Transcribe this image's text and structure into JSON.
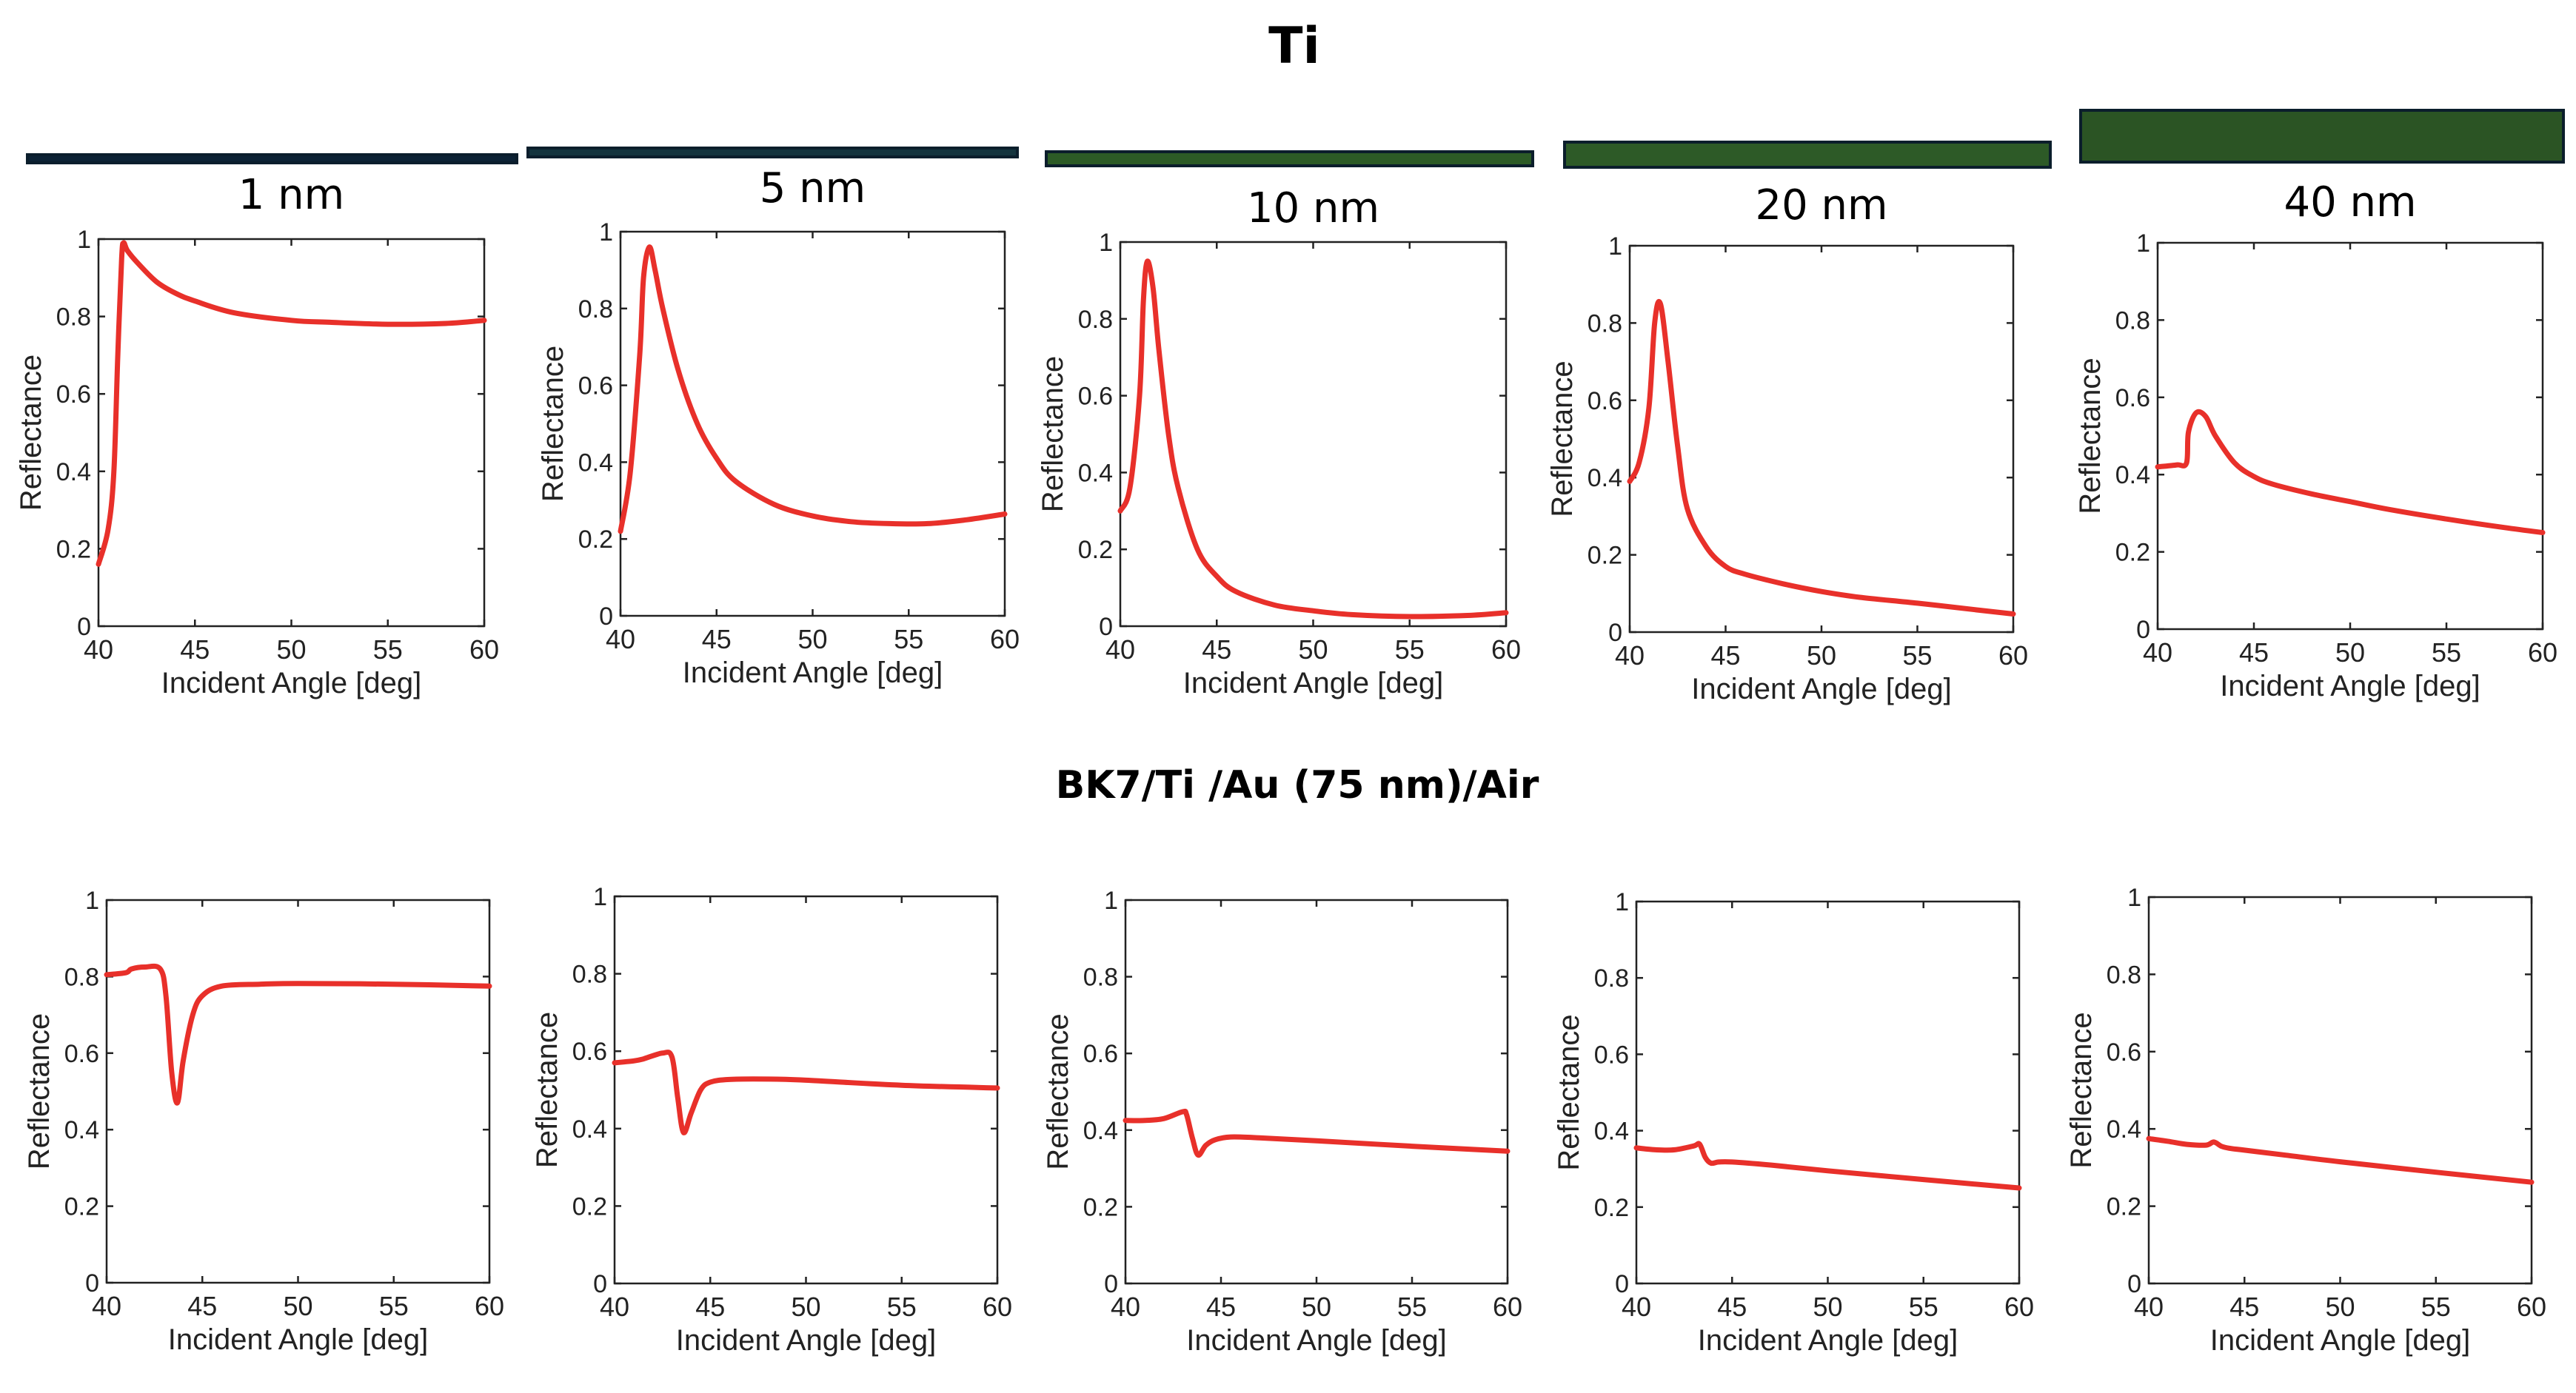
{
  "figure": {
    "title": "Ti",
    "subtitle": "BK7/Ti /Au (75 nm)/Air",
    "thickness_labels": [
      "1 nm",
      "5 nm",
      "10 nm",
      "20 nm",
      "40 nm"
    ],
    "thickness_bar_colors": [
      "#0c2235",
      "#14343e",
      "#2c5b26",
      "#2d5a27",
      "#2b5424"
    ],
    "line_color": "#e8302a"
  },
  "chart_data": [
    {
      "type": "line",
      "row": "top",
      "panel": "1 nm",
      "xlabel": "Incident Angle [deg]",
      "ylabel": "Reflectance",
      "xlim": [
        40,
        60
      ],
      "ylim": [
        0,
        1
      ],
      "xticks": [
        40,
        45,
        50,
        55,
        60
      ],
      "yticks": [
        0,
        0.2,
        0.4,
        0.6,
        0.8,
        1
      ],
      "x": [
        40,
        40.5,
        40.8,
        41.0,
        41.2,
        41.3,
        41.5,
        42,
        43,
        44,
        45,
        47,
        50,
        52,
        55,
        58,
        60
      ],
      "y": [
        0.16,
        0.25,
        0.4,
        0.7,
        0.95,
        0.99,
        0.97,
        0.94,
        0.89,
        0.86,
        0.84,
        0.81,
        0.79,
        0.785,
        0.78,
        0.782,
        0.79
      ]
    },
    {
      "type": "line",
      "row": "top",
      "panel": "5 nm",
      "xlabel": "Incident Angle [deg]",
      "ylabel": "Reflectance",
      "xlim": [
        40,
        60
      ],
      "ylim": [
        0,
        1
      ],
      "xticks": [
        40,
        45,
        50,
        55,
        60
      ],
      "yticks": [
        0,
        0.2,
        0.4,
        0.6,
        0.8,
        1
      ],
      "x": [
        40,
        40.5,
        41.0,
        41.2,
        41.5,
        41.8,
        42.2,
        43,
        44,
        45,
        46,
        48,
        50,
        52,
        54,
        56,
        58,
        60
      ],
      "y": [
        0.22,
        0.37,
        0.68,
        0.88,
        0.96,
        0.9,
        0.8,
        0.64,
        0.5,
        0.41,
        0.35,
        0.29,
        0.26,
        0.245,
        0.24,
        0.24,
        0.25,
        0.265
      ]
    },
    {
      "type": "line",
      "row": "top",
      "panel": "10 nm",
      "xlabel": "Incident Angle [deg]",
      "ylabel": "Reflectance",
      "xlim": [
        40,
        60
      ],
      "ylim": [
        0,
        1
      ],
      "xticks": [
        40,
        45,
        50,
        55,
        60
      ],
      "yticks": [
        0,
        0.2,
        0.4,
        0.6,
        0.8,
        1
      ],
      "x": [
        40,
        40.5,
        41.0,
        41.2,
        41.4,
        41.7,
        42.0,
        42.5,
        43,
        44,
        45,
        46,
        48,
        50,
        52,
        55,
        58,
        60
      ],
      "y": [
        0.3,
        0.36,
        0.6,
        0.85,
        0.95,
        0.88,
        0.72,
        0.5,
        0.36,
        0.2,
        0.13,
        0.09,
        0.055,
        0.04,
        0.03,
        0.025,
        0.028,
        0.035
      ]
    },
    {
      "type": "line",
      "row": "top",
      "panel": "20 nm",
      "xlabel": "Incident Angle [deg]",
      "ylabel": "Reflectance",
      "xlim": [
        40,
        60
      ],
      "ylim": [
        0,
        1
      ],
      "xticks": [
        40,
        45,
        50,
        55,
        60
      ],
      "yticks": [
        0,
        0.2,
        0.4,
        0.6,
        0.8,
        1
      ],
      "x": [
        40,
        40.5,
        41.0,
        41.3,
        41.6,
        42.0,
        42.5,
        43,
        44,
        45,
        46,
        48,
        50,
        52,
        55,
        58,
        60
      ],
      "y": [
        0.39,
        0.44,
        0.58,
        0.8,
        0.85,
        0.7,
        0.48,
        0.32,
        0.22,
        0.17,
        0.15,
        0.125,
        0.105,
        0.09,
        0.075,
        0.058,
        0.047
      ]
    },
    {
      "type": "line",
      "row": "top",
      "panel": "40 nm",
      "xlabel": "Incident Angle [deg]",
      "ylabel": "Reflectance",
      "xlim": [
        40,
        60
      ],
      "ylim": [
        0,
        1
      ],
      "xticks": [
        40,
        45,
        50,
        55,
        60
      ],
      "yticks": [
        0,
        0.2,
        0.4,
        0.6,
        0.8,
        1
      ],
      "x": [
        40,
        41,
        41.5,
        41.6,
        42.0,
        42.5,
        43,
        44,
        45,
        46,
        48,
        50,
        52,
        55,
        58,
        60
      ],
      "y": [
        0.42,
        0.425,
        0.43,
        0.51,
        0.56,
        0.55,
        0.5,
        0.43,
        0.395,
        0.375,
        0.35,
        0.33,
        0.31,
        0.285,
        0.263,
        0.25
      ]
    },
    {
      "type": "line",
      "row": "bottom",
      "panel": "1 nm",
      "xlabel": "Incident Angle [deg]",
      "ylabel": "Reflectance",
      "xlim": [
        40,
        60
      ],
      "ylim": [
        0,
        1
      ],
      "xticks": [
        40,
        45,
        50,
        55,
        60
      ],
      "yticks": [
        0,
        0.2,
        0.4,
        0.6,
        0.8,
        1
      ],
      "x": [
        40,
        41,
        41.3,
        42,
        42.8,
        43.1,
        43.4,
        43.7,
        44.0,
        44.5,
        45,
        46,
        48,
        50,
        55,
        60
      ],
      "y": [
        0.805,
        0.81,
        0.82,
        0.825,
        0.82,
        0.75,
        0.55,
        0.47,
        0.58,
        0.7,
        0.75,
        0.775,
        0.78,
        0.782,
        0.78,
        0.775
      ]
    },
    {
      "type": "line",
      "row": "bottom",
      "panel": "5 nm",
      "xlabel": "Incident Angle [deg]",
      "ylabel": "Reflectance",
      "xlim": [
        40,
        60
      ],
      "ylim": [
        0,
        1
      ],
      "xticks": [
        40,
        45,
        50,
        55,
        60
      ],
      "yticks": [
        0,
        0.2,
        0.4,
        0.6,
        0.8,
        1
      ],
      "x": [
        40,
        41,
        41.5,
        42.5,
        43.0,
        43.3,
        43.6,
        44.0,
        44.5,
        45,
        46,
        48,
        50,
        55,
        60
      ],
      "y": [
        0.57,
        0.575,
        0.58,
        0.595,
        0.585,
        0.48,
        0.39,
        0.44,
        0.5,
        0.52,
        0.527,
        0.528,
        0.525,
        0.512,
        0.505
      ]
    },
    {
      "type": "line",
      "row": "bottom",
      "panel": "10 nm",
      "xlabel": "Incident Angle [deg]",
      "ylabel": "Reflectance",
      "xlim": [
        40,
        60
      ],
      "ylim": [
        0,
        1
      ],
      "xticks": [
        40,
        45,
        50,
        55,
        60
      ],
      "yticks": [
        0,
        0.2,
        0.4,
        0.6,
        0.8,
        1
      ],
      "x": [
        40,
        41,
        42,
        43,
        43.2,
        43.5,
        43.8,
        44.2,
        44.7,
        45.5,
        47,
        50,
        55,
        60
      ],
      "y": [
        0.425,
        0.425,
        0.43,
        0.448,
        0.44,
        0.38,
        0.335,
        0.36,
        0.375,
        0.382,
        0.38,
        0.372,
        0.358,
        0.345
      ]
    },
    {
      "type": "line",
      "row": "bottom",
      "panel": "20 nm",
      "xlabel": "Incident Angle [deg]",
      "ylabel": "Reflectance",
      "xlim": [
        40,
        60
      ],
      "ylim": [
        0,
        1
      ],
      "xticks": [
        40,
        45,
        50,
        55,
        60
      ],
      "yticks": [
        0,
        0.2,
        0.4,
        0.6,
        0.8,
        1
      ],
      "x": [
        40,
        41,
        42,
        43,
        43.3,
        43.6,
        43.9,
        44.3,
        45,
        47,
        50,
        55,
        60
      ],
      "y": [
        0.355,
        0.35,
        0.35,
        0.36,
        0.365,
        0.33,
        0.315,
        0.318,
        0.318,
        0.31,
        0.295,
        0.272,
        0.25
      ]
    },
    {
      "type": "line",
      "row": "bottom",
      "panel": "40 nm",
      "xlabel": "Incident Angle [deg]",
      "ylabel": "Reflectance",
      "xlim": [
        40,
        60
      ],
      "ylim": [
        0,
        1
      ],
      "xticks": [
        40,
        45,
        50,
        55,
        60
      ],
      "yticks": [
        0,
        0.2,
        0.4,
        0.6,
        0.8,
        1
      ],
      "x": [
        40,
        41,
        42,
        43,
        43.4,
        43.8,
        44.2,
        45,
        47,
        50,
        55,
        60
      ],
      "y": [
        0.375,
        0.368,
        0.36,
        0.358,
        0.366,
        0.355,
        0.35,
        0.345,
        0.333,
        0.315,
        0.288,
        0.262
      ]
    }
  ]
}
